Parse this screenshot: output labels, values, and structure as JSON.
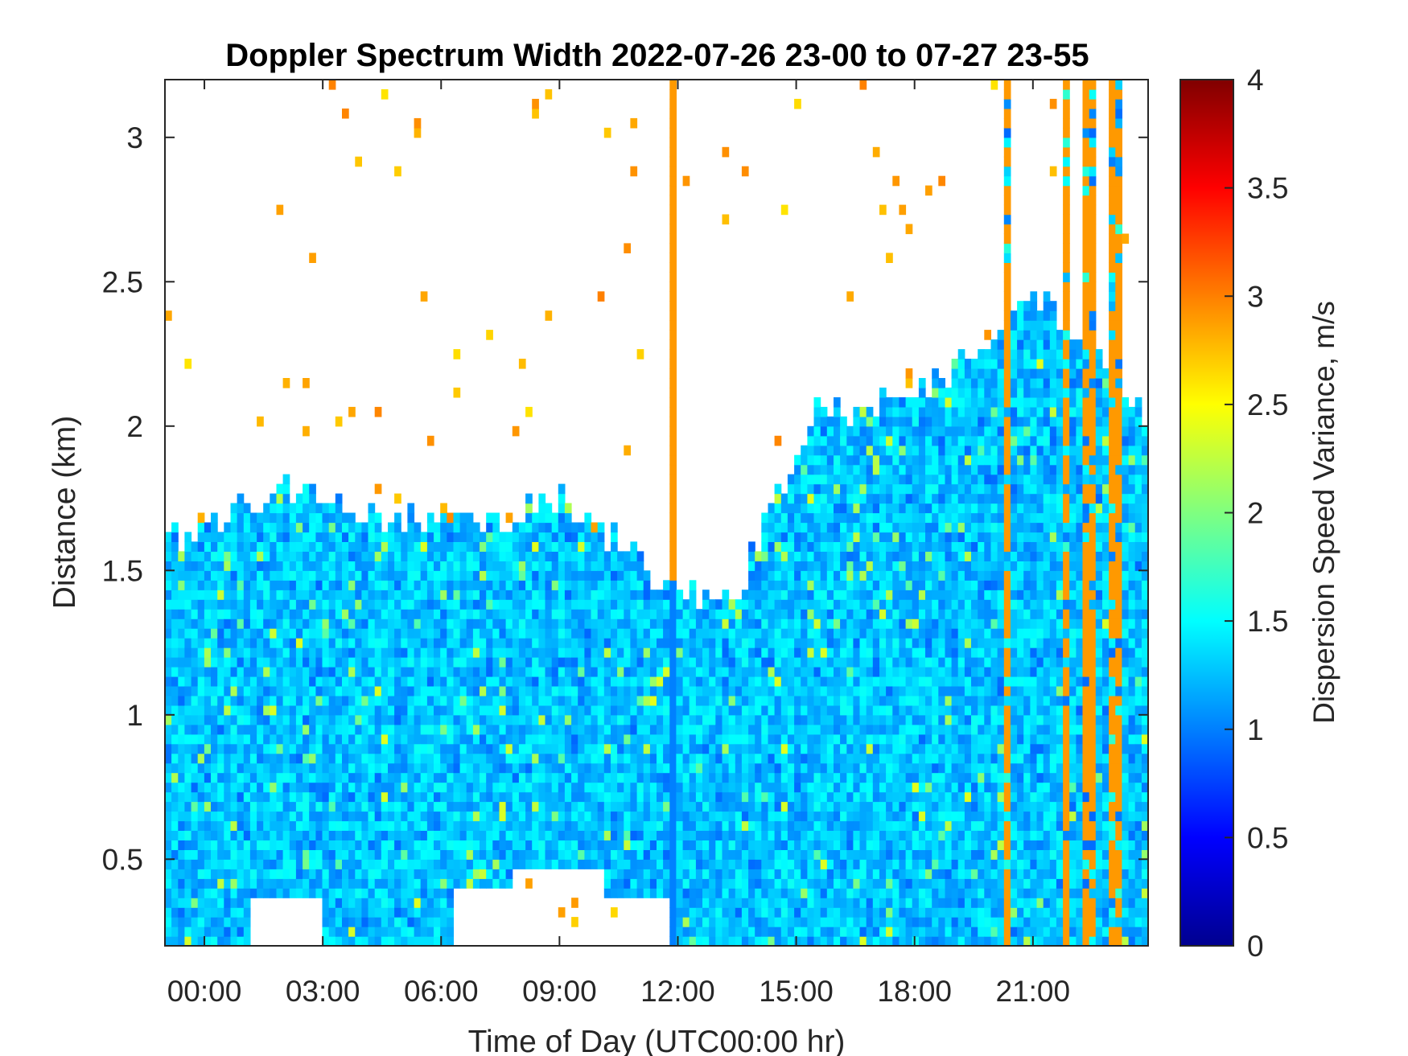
{
  "chart_data": {
    "type": "heatmap",
    "title": "Doppler Spectrum Width 2022-07-26 23-00 to 07-27 23-55",
    "xlabel": "Time of Day (UTC00:00 hr)",
    "ylabel": "Distance (km)",
    "x_unit": "hours",
    "xlim": [
      -1,
      23.92
    ],
    "ylim": [
      0.2,
      3.2
    ],
    "x_ticks": [
      0,
      3,
      6,
      9,
      12,
      15,
      18,
      21
    ],
    "x_tick_labels": [
      "00:00",
      "03:00",
      "06:00",
      "09:00",
      "12:00",
      "15:00",
      "18:00",
      "21:00"
    ],
    "y_ticks": [
      0.5,
      1,
      1.5,
      2,
      2.5,
      3
    ],
    "y_tick_labels": [
      "0.5",
      "1",
      "1.5",
      "2",
      "2.5",
      "3"
    ],
    "colorbar": {
      "label": "Dispersion Speed Variance, m/s",
      "range": [
        0,
        4
      ],
      "ticks": [
        0,
        0.5,
        1,
        1.5,
        2,
        2.5,
        3,
        3.5,
        4
      ],
      "tick_labels": [
        "0",
        "0.5",
        "1",
        "1.5",
        "2",
        "2.5",
        "3",
        "3.5",
        "4"
      ],
      "colormap": "jet"
    },
    "grid": false,
    "background_color": "#ffffff",
    "typical_value_bulk": 1.3,
    "signal_top_km": [
      {
        "time": -1,
        "top": 1.6
      },
      {
        "time": 0,
        "top": 1.65
      },
      {
        "time": 1.5,
        "top": 1.75
      },
      {
        "time": 2.5,
        "top": 1.8
      },
      {
        "time": 3.5,
        "top": 1.7
      },
      {
        "time": 5,
        "top": 1.68
      },
      {
        "time": 7,
        "top": 1.66
      },
      {
        "time": 9,
        "top": 1.75
      },
      {
        "time": 10.5,
        "top": 1.6
      },
      {
        "time": 11.5,
        "top": 1.45
      },
      {
        "time": 12.5,
        "top": 1.42
      },
      {
        "time": 13.5,
        "top": 1.4
      },
      {
        "time": 14.5,
        "top": 1.75
      },
      {
        "time": 15.5,
        "top": 2.05
      },
      {
        "time": 17,
        "top": 2.08
      },
      {
        "time": 18.5,
        "top": 2.15
      },
      {
        "time": 20,
        "top": 2.3
      },
      {
        "time": 21,
        "top": 2.45
      },
      {
        "time": 22.5,
        "top": 2.3
      },
      {
        "time": 23.92,
        "top": 2.0
      }
    ],
    "gap_regions": [
      {
        "t0": 1.2,
        "t1": 3.0,
        "z0": 0.2,
        "z1": 0.35
      },
      {
        "t0": 6.3,
        "t1": 7.8,
        "z0": 0.2,
        "z1": 0.4
      },
      {
        "t0": 7.8,
        "t1": 10.2,
        "z0": 0.2,
        "z1": 0.45
      },
      {
        "t0": 10.2,
        "t1": 12.0,
        "z0": 0.2,
        "z1": 0.38
      }
    ],
    "high_variance_columns": [
      {
        "t0": 20.2,
        "t1": 20.5,
        "value": 2.9
      },
      {
        "t0": 21.8,
        "t1": 22.0,
        "value": 2.9
      },
      {
        "t0": 22.3,
        "t1": 22.6,
        "value": 2.9
      },
      {
        "t0": 23.0,
        "t1": 23.3,
        "value": 2.9
      }
    ],
    "spike_column": {
      "time": 11.95,
      "value": 2.9
    }
  }
}
